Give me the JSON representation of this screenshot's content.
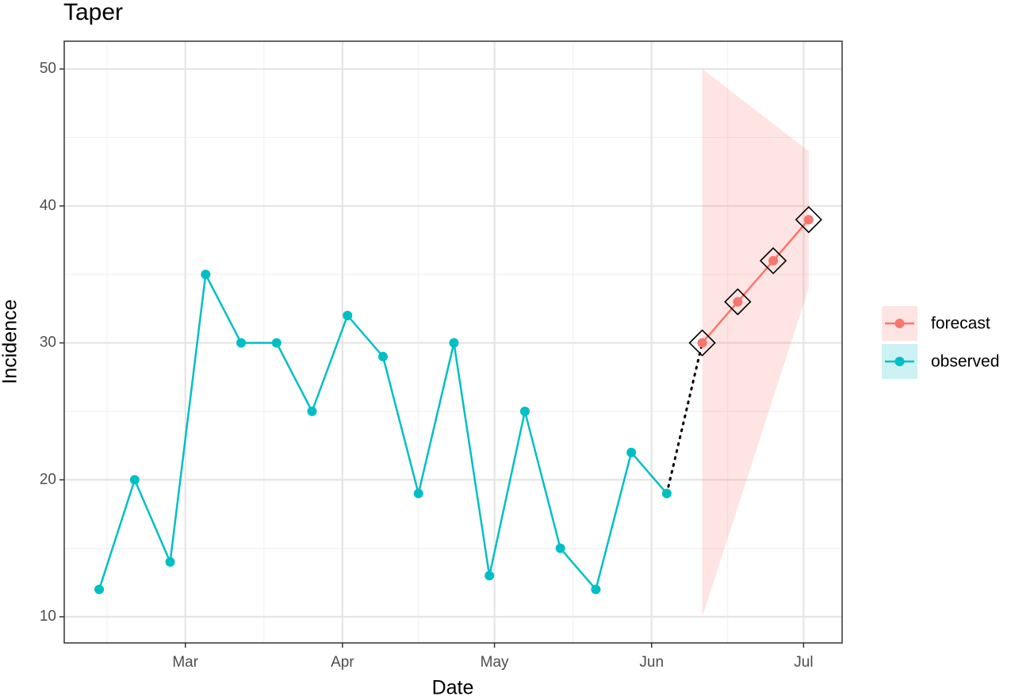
{
  "chart_data": {
    "type": "line",
    "title": "Taper",
    "x_label": "Date",
    "y_label": "Incidence",
    "xlim": [
      36.1,
      189.6
    ],
    "ylim": [
      8.09,
      52.03
    ],
    "xticks": [
      {
        "value": 60,
        "label": "Mar"
      },
      {
        "value": 91,
        "label": "Apr"
      },
      {
        "value": 121,
        "label": "May"
      },
      {
        "value": 152,
        "label": "Jun"
      },
      {
        "value": 182,
        "label": "Jul"
      }
    ],
    "yticks": [
      10,
      20,
      30,
      40,
      50
    ],
    "grid": true,
    "series": [
      {
        "name": "forecast",
        "color": "#F8766D",
        "x": [
          162,
          169,
          176,
          183
        ],
        "values": [
          30,
          33,
          36,
          39
        ],
        "lower": [
          10,
          18,
          26,
          34
        ],
        "upper": [
          50,
          48,
          46,
          44
        ]
      },
      {
        "name": "observed",
        "color": "#00BFC4",
        "x": [
          43,
          50,
          57,
          64,
          71,
          78,
          85,
          92,
          99,
          106,
          113,
          120,
          127,
          134,
          141,
          148,
          155
        ],
        "values": [
          12,
          20,
          14,
          35,
          30,
          30,
          25,
          32,
          29,
          19,
          30,
          13,
          25,
          15,
          12,
          22,
          19
        ]
      }
    ]
  }
}
